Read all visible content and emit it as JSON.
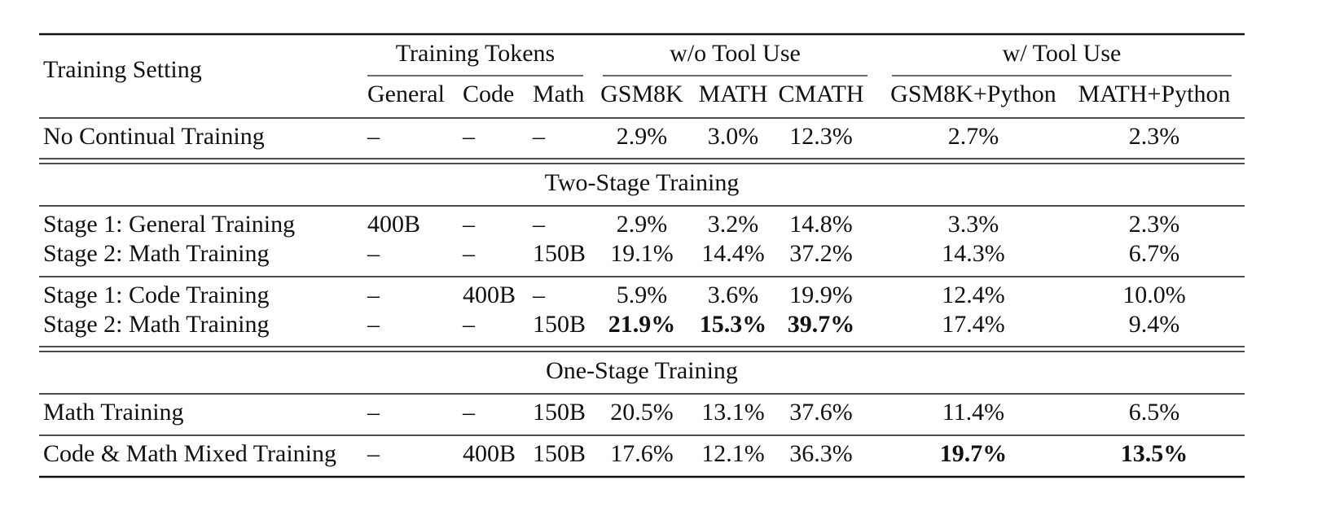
{
  "table": {
    "header": {
      "setting": "Training Setting",
      "groups": [
        {
          "label": "Training Tokens",
          "columns": [
            "General",
            "Code",
            "Math"
          ]
        },
        {
          "label": "w/o Tool Use",
          "columns": [
            "GSM8K",
            "MATH",
            "CMATH"
          ]
        },
        {
          "label": "w/ Tool Use",
          "columns": [
            "GSM8K+Python",
            "MATH+Python"
          ]
        }
      ]
    },
    "sections": [
      {
        "groups": [
          [
            [
              "No Continual Training",
              "–",
              "–",
              "–",
              "2.9%",
              "3.0%",
              "12.3%",
              "2.7%",
              "2.3%"
            ]
          ]
        ]
      },
      {
        "title": "Two-Stage Training",
        "groups": [
          [
            [
              "Stage 1: General Training",
              "400B",
              "–",
              "–",
              "2.9%",
              "3.2%",
              "14.8%",
              "3.3%",
              "2.3%"
            ],
            [
              "Stage 2: Math Training",
              "–",
              "–",
              "150B",
              "19.1%",
              "14.4%",
              "37.2%",
              "14.3%",
              "6.7%"
            ]
          ],
          [
            [
              "Stage 1: Code Training",
              "–",
              "400B",
              "–",
              "5.9%",
              "3.6%",
              "19.9%",
              "12.4%",
              "10.0%"
            ],
            [
              "Stage 2: Math Training",
              "–",
              "–",
              "150B",
              {
                "text": "21.9%",
                "bold": true
              },
              {
                "text": "15.3%",
                "bold": true
              },
              {
                "text": "39.7%",
                "bold": true
              },
              "17.4%",
              "9.4%"
            ]
          ]
        ]
      },
      {
        "title": "One-Stage Training",
        "groups": [
          [
            [
              "Math Training",
              "–",
              "–",
              "150B",
              "20.5%",
              "13.1%",
              "37.6%",
              "11.4%",
              "6.5%"
            ]
          ],
          [
            [
              "Code & Math Mixed Training",
              "–",
              "400B",
              "150B",
              "17.6%",
              "12.1%",
              "36.3%",
              {
                "text": "19.7%",
                "bold": true
              },
              {
                "text": "13.5%",
                "bold": true
              }
            ]
          ]
        ]
      }
    ]
  }
}
